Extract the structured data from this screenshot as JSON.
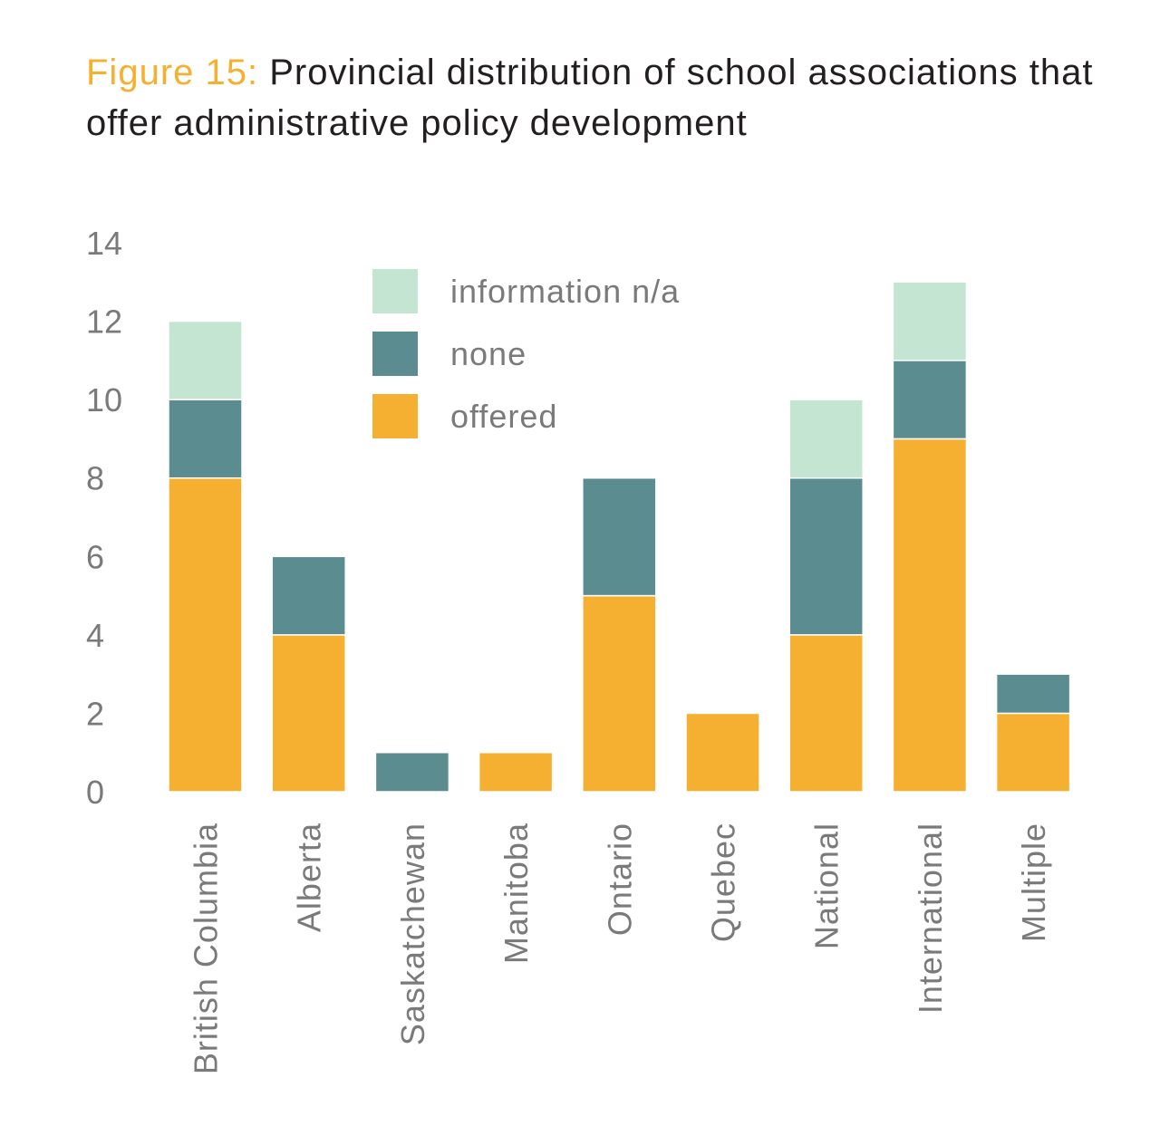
{
  "title": {
    "figure_label": "Figure 15:",
    "text": "Provincial distribution of school associations that offer administrative policy development"
  },
  "chart_data": {
    "type": "bar",
    "stacked": true,
    "categories": [
      "British Columbia",
      "Alberta",
      "Saskatchewan",
      "Manitoba",
      "Ontario",
      "Quebec",
      "National",
      "International",
      "Multiple"
    ],
    "series": [
      {
        "name": "offered",
        "color": "#f5b031",
        "values": [
          8,
          4,
          0,
          1,
          5,
          2,
          4,
          9,
          2
        ]
      },
      {
        "name": "none",
        "color": "#5b8c8f",
        "values": [
          2,
          2,
          1,
          0,
          3,
          0,
          4,
          2,
          1
        ]
      },
      {
        "name": "information n/a",
        "color": "#c3e5d2",
        "values": [
          2,
          0,
          0,
          0,
          0,
          0,
          2,
          2,
          0
        ]
      }
    ],
    "legend_order": [
      "information n/a",
      "none",
      "offered"
    ],
    "ylim": [
      0,
      14
    ],
    "yticks": [
      0,
      2,
      4,
      6,
      8,
      10,
      12,
      14
    ],
    "xlabel": "",
    "ylabel": "",
    "legend_position": "top-center",
    "grid": false
  }
}
